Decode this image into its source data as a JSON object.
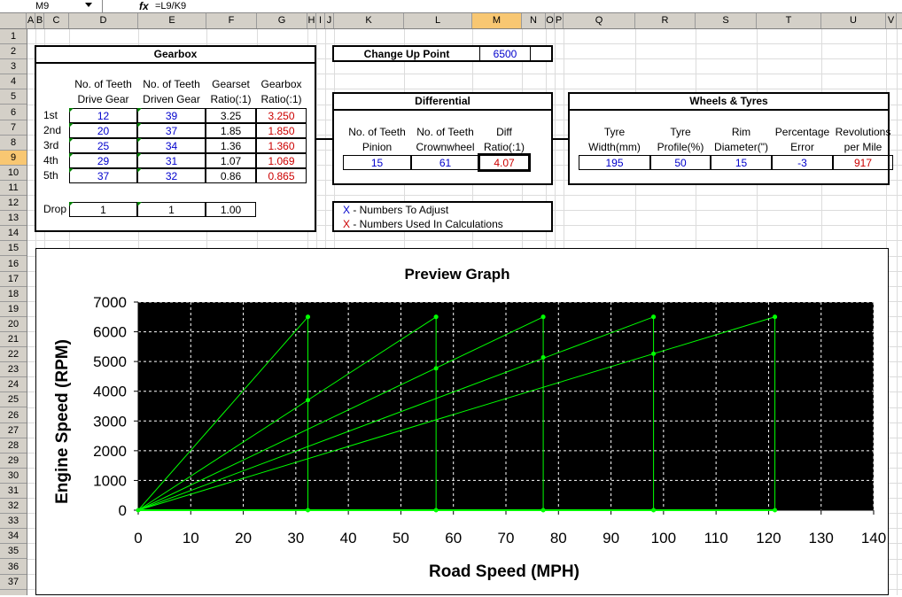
{
  "formula_bar": {
    "name_box": "M9",
    "fx": "fx",
    "formula": "=L9/K9"
  },
  "columns": [
    "A",
    "B",
    "C",
    "D",
    "E",
    "F",
    "G",
    "H",
    "I",
    "J",
    "K",
    "L",
    "M",
    "N",
    "O",
    "P",
    "Q",
    "R",
    "S",
    "T",
    "U",
    "V"
  ],
  "selected_column": "M",
  "rows": [
    1,
    2,
    3,
    4,
    5,
    6,
    7,
    8,
    9,
    10,
    11,
    12,
    13,
    14,
    15,
    16,
    17,
    18,
    19,
    20,
    21,
    22,
    23,
    24,
    25,
    26,
    27,
    28,
    29,
    30,
    31,
    32,
    33,
    34,
    35,
    36,
    37
  ],
  "selected_row": 9,
  "gearbox": {
    "title": "Gearbox",
    "header_row1": [
      "No. of Teeth",
      "No. of Teeth",
      "Gearset",
      "Gearbox"
    ],
    "header_row2": [
      "Drive Gear",
      "Driven Gear",
      "Ratio(:1)",
      "Ratio(:1)"
    ],
    "gears": [
      {
        "label": "1st",
        "drive": "12",
        "driven": "39",
        "gearset": "3.25",
        "gearbox": "3.250"
      },
      {
        "label": "2nd",
        "drive": "20",
        "driven": "37",
        "gearset": "1.85",
        "gearbox": "1.850"
      },
      {
        "label": "3rd",
        "drive": "25",
        "driven": "34",
        "gearset": "1.36",
        "gearbox": "1.360"
      },
      {
        "label": "4th",
        "drive": "29",
        "driven": "31",
        "gearset": "1.07",
        "gearbox": "1.069"
      },
      {
        "label": "5th",
        "drive": "37",
        "driven": "32",
        "gearset": "0.86",
        "gearbox": "0.865"
      }
    ],
    "drop": {
      "label": "Drop",
      "drive": "1",
      "driven": "1",
      "ratio": "1.00"
    }
  },
  "change_up": {
    "label": "Change Up Point",
    "value": "6500"
  },
  "differential": {
    "title": "Differential",
    "header_row1": [
      "No. of Teeth",
      "No. of Teeth",
      "Diff"
    ],
    "header_row2": [
      "Pinion",
      "Crownwheel",
      "Ratio(:1)"
    ],
    "values": [
      "15",
      "61",
      "4.07"
    ]
  },
  "wheels": {
    "title": "Wheels & Tyres",
    "header_row1": [
      "Tyre",
      "Tyre",
      "Rim",
      "Percentage",
      "Revolutions"
    ],
    "header_row2": [
      "Width(mm)",
      "Profile(%)",
      "Diameter(\")",
      "Error",
      "per Mile"
    ],
    "values": [
      "195",
      "50",
      "15",
      "-3",
      "917"
    ]
  },
  "legend": {
    "adjust_x": "X",
    "adjust_text": " - Numbers To Adjust",
    "calc_x": "X",
    "calc_text": " - Numbers Used In Calculations"
  },
  "chart_data": {
    "type": "line",
    "title": "Preview Graph",
    "xlabel": "Road Speed (MPH)",
    "ylabel": "Engine Speed (RPM)",
    "xlim": [
      0,
      140
    ],
    "ylim": [
      0,
      7000
    ],
    "x_ticks": [
      0,
      10,
      20,
      30,
      40,
      50,
      60,
      70,
      80,
      90,
      100,
      110,
      120,
      130,
      140
    ],
    "y_ticks": [
      0,
      1000,
      2000,
      3000,
      4000,
      5000,
      6000,
      7000
    ],
    "grid": true,
    "background": "#000000",
    "line_color": "#00ff00",
    "series": [
      {
        "points": [
          [
            0,
            0
          ],
          [
            32.3,
            6500
          ]
        ]
      },
      {
        "points": [
          [
            32.3,
            3700
          ],
          [
            56.7,
            6500
          ]
        ]
      },
      {
        "points": [
          [
            56.7,
            4770
          ],
          [
            77.1,
            6500
          ]
        ]
      },
      {
        "points": [
          [
            77.1,
            5140
          ],
          [
            98.1,
            6500
          ]
        ]
      },
      {
        "points": [
          [
            98.1,
            5260
          ],
          [
            121.2,
            6500
          ]
        ]
      }
    ],
    "shift_points": [
      {
        "x": 32.3,
        "y_from": 0,
        "y_to": 6500
      },
      {
        "x": 56.7,
        "y_from": 0,
        "y_to": 6500
      },
      {
        "x": 77.1,
        "y_from": 0,
        "y_to": 6500
      },
      {
        "x": 98.1,
        "y_from": 0,
        "y_to": 6500
      },
      {
        "x": 121.2,
        "y_from": 0,
        "y_to": 6500
      }
    ]
  }
}
